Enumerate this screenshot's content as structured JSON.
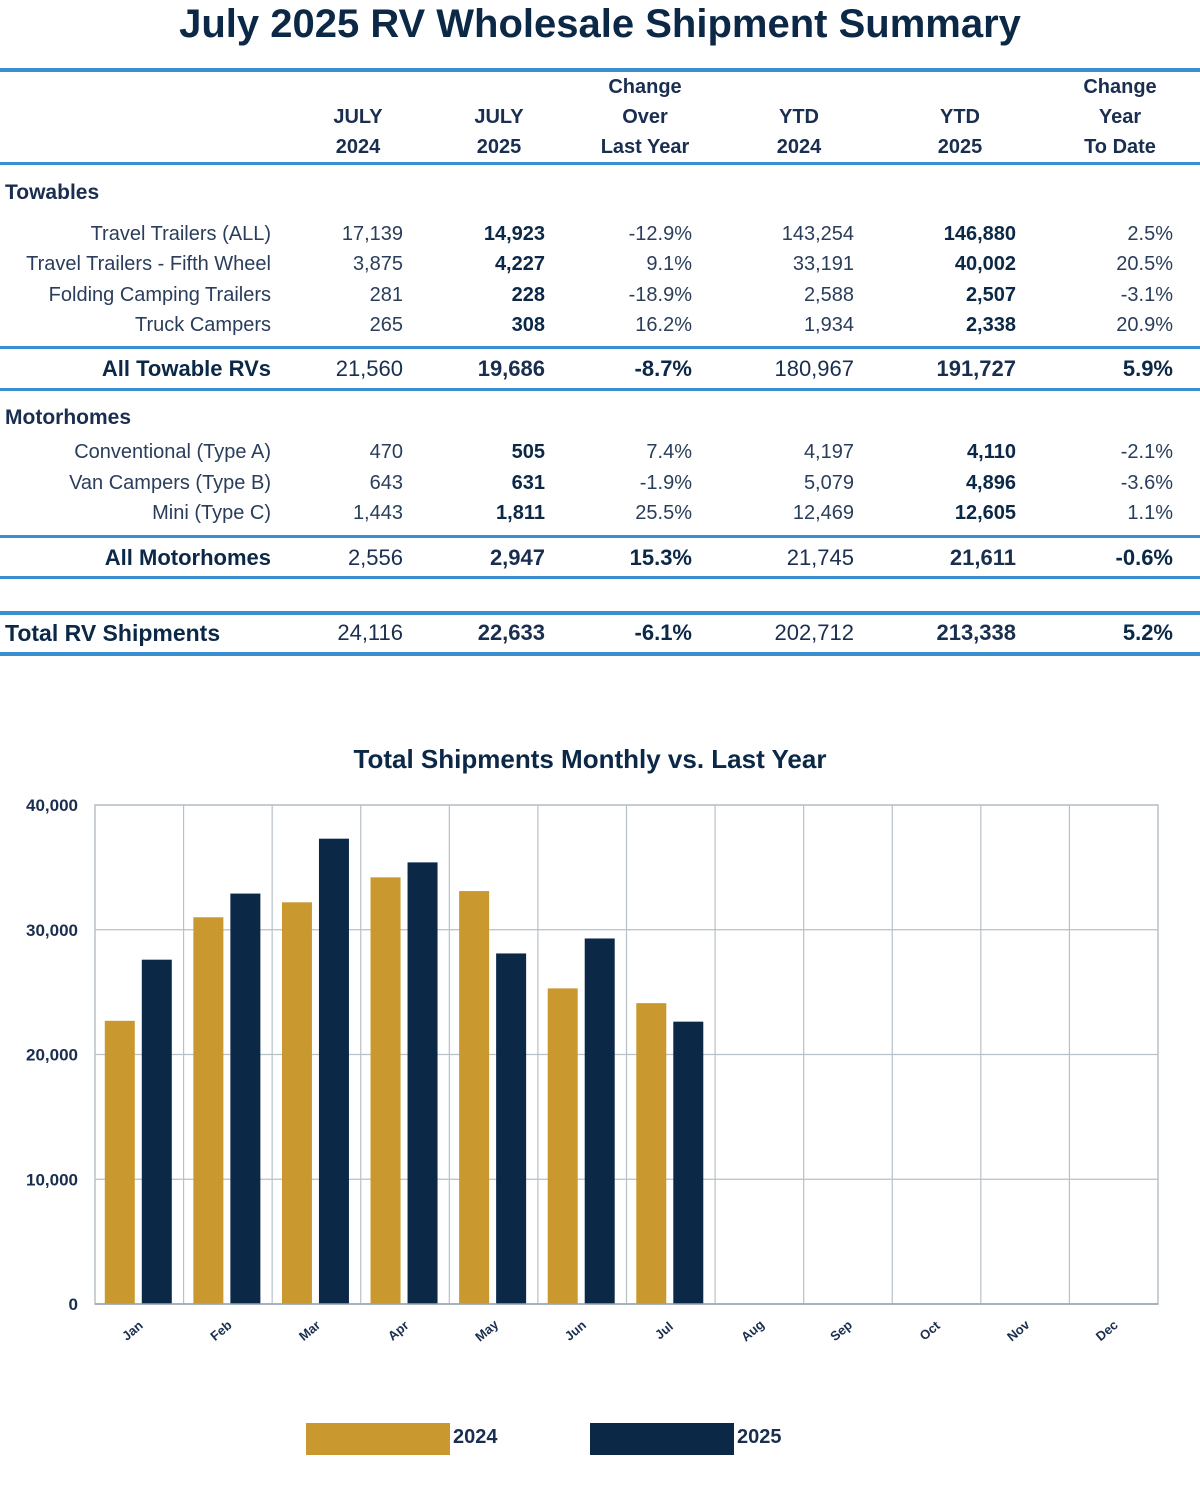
{
  "title": "July 2025 RV Wholesale Shipment Summary",
  "table": {
    "headers": [
      {
        "line1": "",
        "line2": "JULY",
        "line3": "2024"
      },
      {
        "line1": "",
        "line2": "JULY",
        "line3": "2025"
      },
      {
        "line1": "Change",
        "line2": "Over",
        "line3": "Last Year"
      },
      {
        "line1": "",
        "line2": "YTD",
        "line3": "2024"
      },
      {
        "line1": "",
        "line2": "YTD",
        "line3": "2025"
      },
      {
        "line1": "Change",
        "line2": "Year",
        "line3": "To Date"
      }
    ],
    "towables": {
      "section_label": "Towables",
      "rows": [
        {
          "label": "Travel Trailers (ALL)",
          "v": [
            "17,139",
            "14,923",
            "-12.9%",
            "143,254",
            "146,880",
            "2.5%"
          ]
        },
        {
          "label": "Travel Trailers - Fifth Wheel",
          "v": [
            "3,875",
            "4,227",
            "9.1%",
            "33,191",
            "40,002",
            "20.5%"
          ]
        },
        {
          "label": "Folding Camping Trailers",
          "v": [
            "281",
            "228",
            "-18.9%",
            "2,588",
            "2,507",
            "-3.1%"
          ]
        },
        {
          "label": "Truck Campers",
          "v": [
            "265",
            "308",
            "16.2%",
            "1,934",
            "2,338",
            "20.9%"
          ]
        }
      ],
      "summary": {
        "label": "All Towable RVs",
        "v": [
          "21,560",
          "19,686",
          "-8.7%",
          "180,967",
          "191,727",
          "5.9%"
        ]
      }
    },
    "motorhomes": {
      "section_label": "Motorhomes",
      "rows": [
        {
          "label": "Conventional (Type A)",
          "v": [
            "470",
            "505",
            "7.4%",
            "4,197",
            "4,110",
            "-2.1%"
          ]
        },
        {
          "label": "Van Campers (Type B)",
          "v": [
            "643",
            "631",
            "-1.9%",
            "5,079",
            "4,896",
            "-3.6%"
          ]
        },
        {
          "label": "Mini (Type C)",
          "v": [
            "1,443",
            "1,811",
            "25.5%",
            "12,469",
            "12,605",
            "1.1%"
          ]
        }
      ],
      "summary": {
        "label": "All Motorhomes",
        "v": [
          "2,556",
          "2,947",
          "15.3%",
          "21,745",
          "21,611",
          "-0.6%"
        ]
      }
    },
    "total": {
      "label": "Total RV Shipments",
      "v": [
        "24,116",
        "22,633",
        "-6.1%",
        "202,712",
        "213,338",
        "5.2%"
      ]
    }
  },
  "chart_data": {
    "type": "bar",
    "title": "Total Shipments Monthly vs. Last Year",
    "xlabel": "",
    "ylabel": "",
    "categories": [
      "Jan",
      "Feb",
      "Mar",
      "Apr",
      "May",
      "Jun",
      "Jul",
      "Aug",
      "Sep",
      "Oct",
      "Nov",
      "Dec"
    ],
    "series": [
      {
        "name": "2024",
        "color": "#c9982e",
        "values": [
          22700,
          31000,
          32200,
          34200,
          33100,
          25300,
          24116,
          null,
          null,
          null,
          null,
          null
        ]
      },
      {
        "name": "2025",
        "color": "#0b2847",
        "values": [
          27600,
          32900,
          37300,
          35400,
          28100,
          29300,
          22633,
          null,
          null,
          null,
          null,
          null
        ]
      }
    ],
    "ylim": [
      0,
      40000
    ],
    "yticks": [
      0,
      10000,
      20000,
      30000,
      40000
    ],
    "ytick_labels": [
      "0",
      "10,000",
      "20,000",
      "30,000",
      "40,000"
    ],
    "grid": true,
    "legend": "bottom-center"
  },
  "colors": {
    "navy": "#0b2847",
    "gold": "#c9982e",
    "rule_blue": "#3a8fd0"
  }
}
